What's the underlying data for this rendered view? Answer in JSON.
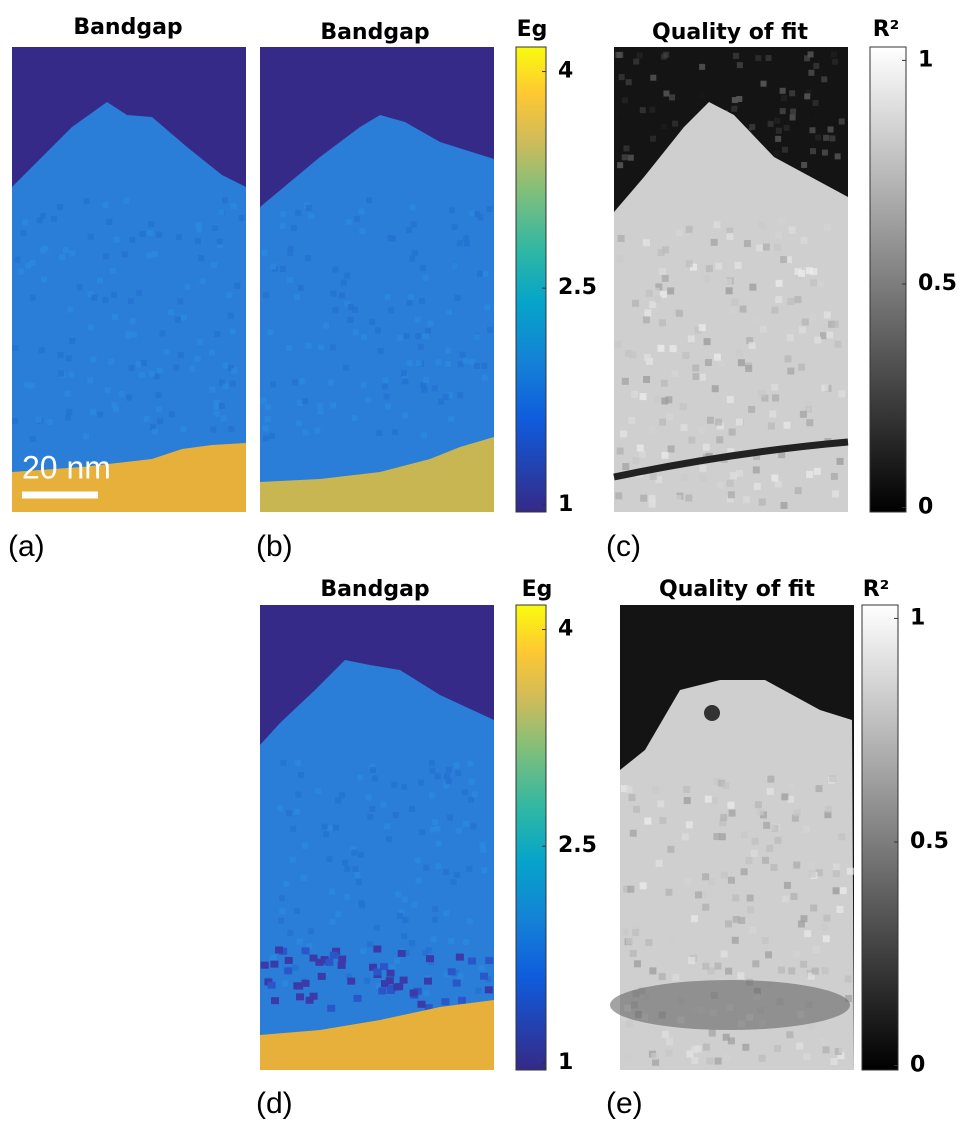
{
  "panels": [
    {
      "title": "Bandgap",
      "label": "(a)",
      "scale_bar": "20 nm"
    },
    {
      "title": "Bandgap",
      "label": "(b)",
      "colorbar": {
        "label": "Eg",
        "lim": [
          0.95,
          4.17
        ],
        "ticks": [
          1,
          2.5,
          4
        ]
      }
    },
    {
      "title": "Quality of fit",
      "label": "(c)",
      "colorbar": {
        "label": "R²",
        "lim": [
          -0.01,
          1.03
        ],
        "ticks": [
          0,
          0.5,
          1
        ]
      }
    },
    {
      "title": "Bandgap",
      "label": "(d)",
      "colorbar": {
        "label": "Eg",
        "lim": [
          0.95,
          4.17
        ],
        "ticks": [
          1,
          2.5,
          4
        ]
      }
    },
    {
      "title": "Quality of fit",
      "label": "(e)",
      "colorbar": {
        "label": "R²",
        "lim": [
          -0.01,
          1.03
        ],
        "ticks": [
          0,
          0.5,
          1
        ]
      }
    }
  ]
}
